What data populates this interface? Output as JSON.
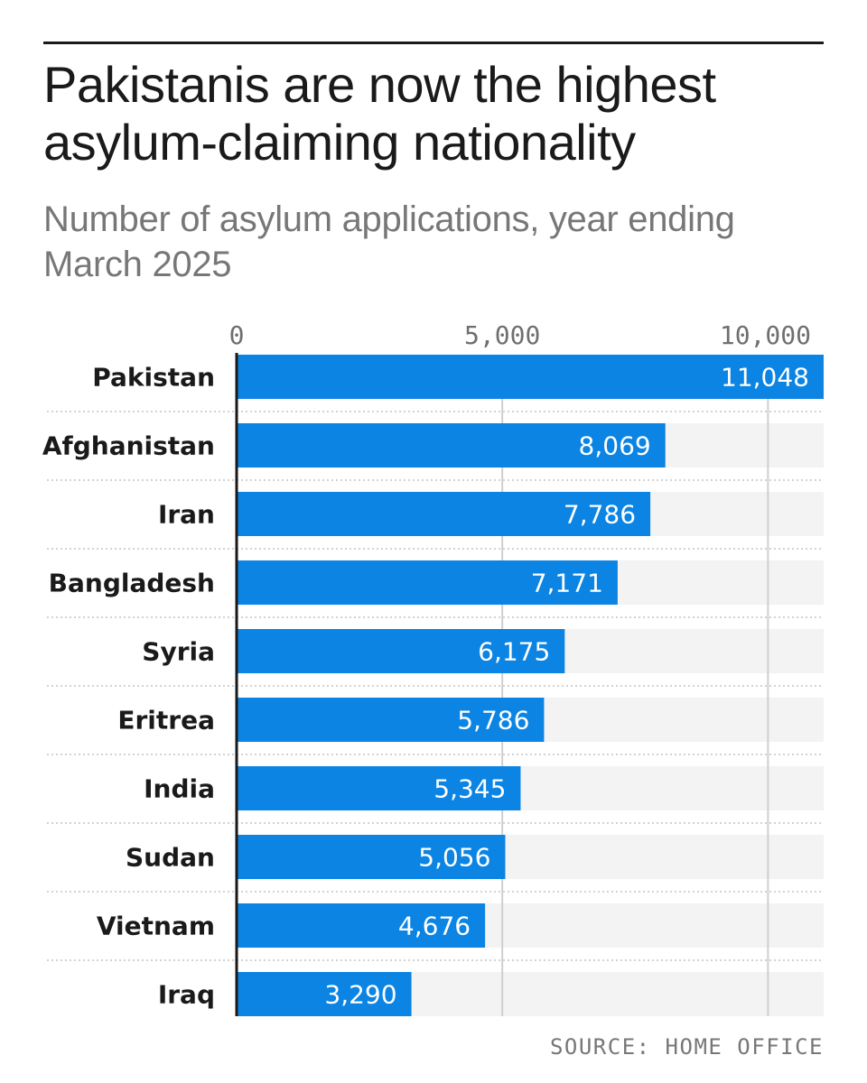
{
  "header": {
    "title": "Pakistanis are now the highest asylum-claiming nationality",
    "subtitle": "Number of asylum applications, year ending March 2025"
  },
  "footer": {
    "source": "SOURCE: HOME OFFICE"
  },
  "colors": {
    "bar": "#0b84e3",
    "track": "#f3f3f3",
    "grid": "#cfcfcf",
    "axis": "#1a1a1a",
    "label": "#1a1a1a",
    "value": "#ffffff"
  },
  "chart_data": {
    "type": "bar",
    "orientation": "horizontal",
    "title": "Pakistanis are now the highest asylum-claiming nationality",
    "subtitle": "Number of asylum applications, year ending March 2025",
    "categories": [
      "Pakistan",
      "Afghanistan",
      "Iran",
      "Bangladesh",
      "Syria",
      "Eritrea",
      "India",
      "Sudan",
      "Vietnam",
      "Iraq"
    ],
    "values": [
      11048,
      8069,
      7786,
      7171,
      6175,
      5786,
      5345,
      5056,
      4676,
      3290
    ],
    "value_labels": [
      "11,048",
      "8,069",
      "7,786",
      "7,171",
      "6,175",
      "5,786",
      "5,345",
      "5,056",
      "4,676",
      "3,290"
    ],
    "xticks": [
      0,
      5000,
      10000
    ],
    "xtick_labels": [
      "0",
      "5,000",
      "10,000"
    ],
    "xlim": [
      0,
      11048
    ],
    "xlabel": "",
    "ylabel": "",
    "grid": true,
    "legend": "none"
  }
}
